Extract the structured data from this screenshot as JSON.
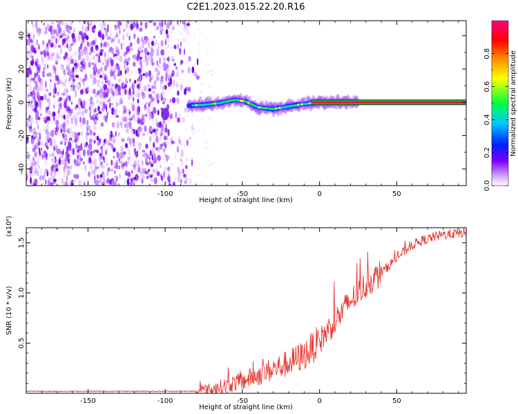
{
  "figure": {
    "title": "C2E1.2023.015.22.20.R16"
  },
  "chart_data": [
    {
      "type": "heatmap",
      "xlabel": "Height of straight line (km)",
      "ylabel": "Frequency (Hz)",
      "xlim": [
        -190,
        95
      ],
      "ylim": [
        -50,
        49
      ],
      "xticks": [
        -150,
        -100,
        -50,
        0,
        50
      ],
      "yticks": [
        -40,
        -20,
        0,
        20,
        40
      ],
      "grid": false,
      "noise_region_x": [
        -190,
        -78
      ],
      "signal_start_x": -85,
      "signal_centerline": [
        {
          "x": -85,
          "y": -2
        },
        {
          "x": -75,
          "y": -1.5
        },
        {
          "x": -65,
          "y": -0.5
        },
        {
          "x": -55,
          "y": 1.5
        },
        {
          "x": -48,
          "y": 0.5
        },
        {
          "x": -40,
          "y": -3
        },
        {
          "x": -30,
          "y": -4
        },
        {
          "x": -20,
          "y": -2.5
        },
        {
          "x": -10,
          "y": -1
        },
        {
          "x": 0,
          "y": 0
        },
        {
          "x": 20,
          "y": 0
        },
        {
          "x": 95,
          "y": 0
        }
      ],
      "colorbar": {
        "label": "Normalized spectral amplitude",
        "range": [
          0,
          1
        ],
        "ticks": [
          0.0,
          0.2,
          0.4,
          0.6,
          0.8
        ],
        "tick_labels": [
          "0.0",
          "0.2",
          "0.4",
          "0.6",
          "0.8"
        ],
        "colormap": [
          "#ffffff",
          "#d9b3ff",
          "#7a00ff",
          "#0020ff",
          "#00ccff",
          "#00ff40",
          "#ffff00",
          "#ff8000",
          "#ff0000",
          "#ff0080"
        ]
      }
    },
    {
      "type": "line",
      "xlabel": "Height of straight line (km)",
      "ylabel": "SNR (10 * v/v)",
      "y_multiplier": "(x10⁴)",
      "xlim": [
        -190,
        95
      ],
      "ylim": [
        0,
        1.65
      ],
      "xticks": [
        -150,
        -100,
        -50,
        0,
        50
      ],
      "yticks": [
        0.5,
        1.0,
        1.5
      ],
      "ytick_labels": [
        "0.5",
        "1.0",
        "1.5"
      ],
      "grid": false,
      "series": [
        {
          "color": "#e8322c",
          "trend": [
            {
              "x": -190,
              "y": 0.02
            },
            {
              "x": -80,
              "y": 0.02
            },
            {
              "x": -70,
              "y": 0.04
            },
            {
              "x": -60,
              "y": 0.08
            },
            {
              "x": -50,
              "y": 0.12
            },
            {
              "x": -40,
              "y": 0.18
            },
            {
              "x": -30,
              "y": 0.24
            },
            {
              "x": -20,
              "y": 0.3
            },
            {
              "x": -10,
              "y": 0.38
            },
            {
              "x": 0,
              "y": 0.52
            },
            {
              "x": 10,
              "y": 0.72
            },
            {
              "x": 20,
              "y": 0.92
            },
            {
              "x": 30,
              "y": 1.08
            },
            {
              "x": 40,
              "y": 1.2
            },
            {
              "x": 50,
              "y": 1.35
            },
            {
              "x": 60,
              "y": 1.48
            },
            {
              "x": 70,
              "y": 1.54
            },
            {
              "x": 80,
              "y": 1.58
            },
            {
              "x": 95,
              "y": 1.6
            }
          ]
        }
      ]
    }
  ]
}
